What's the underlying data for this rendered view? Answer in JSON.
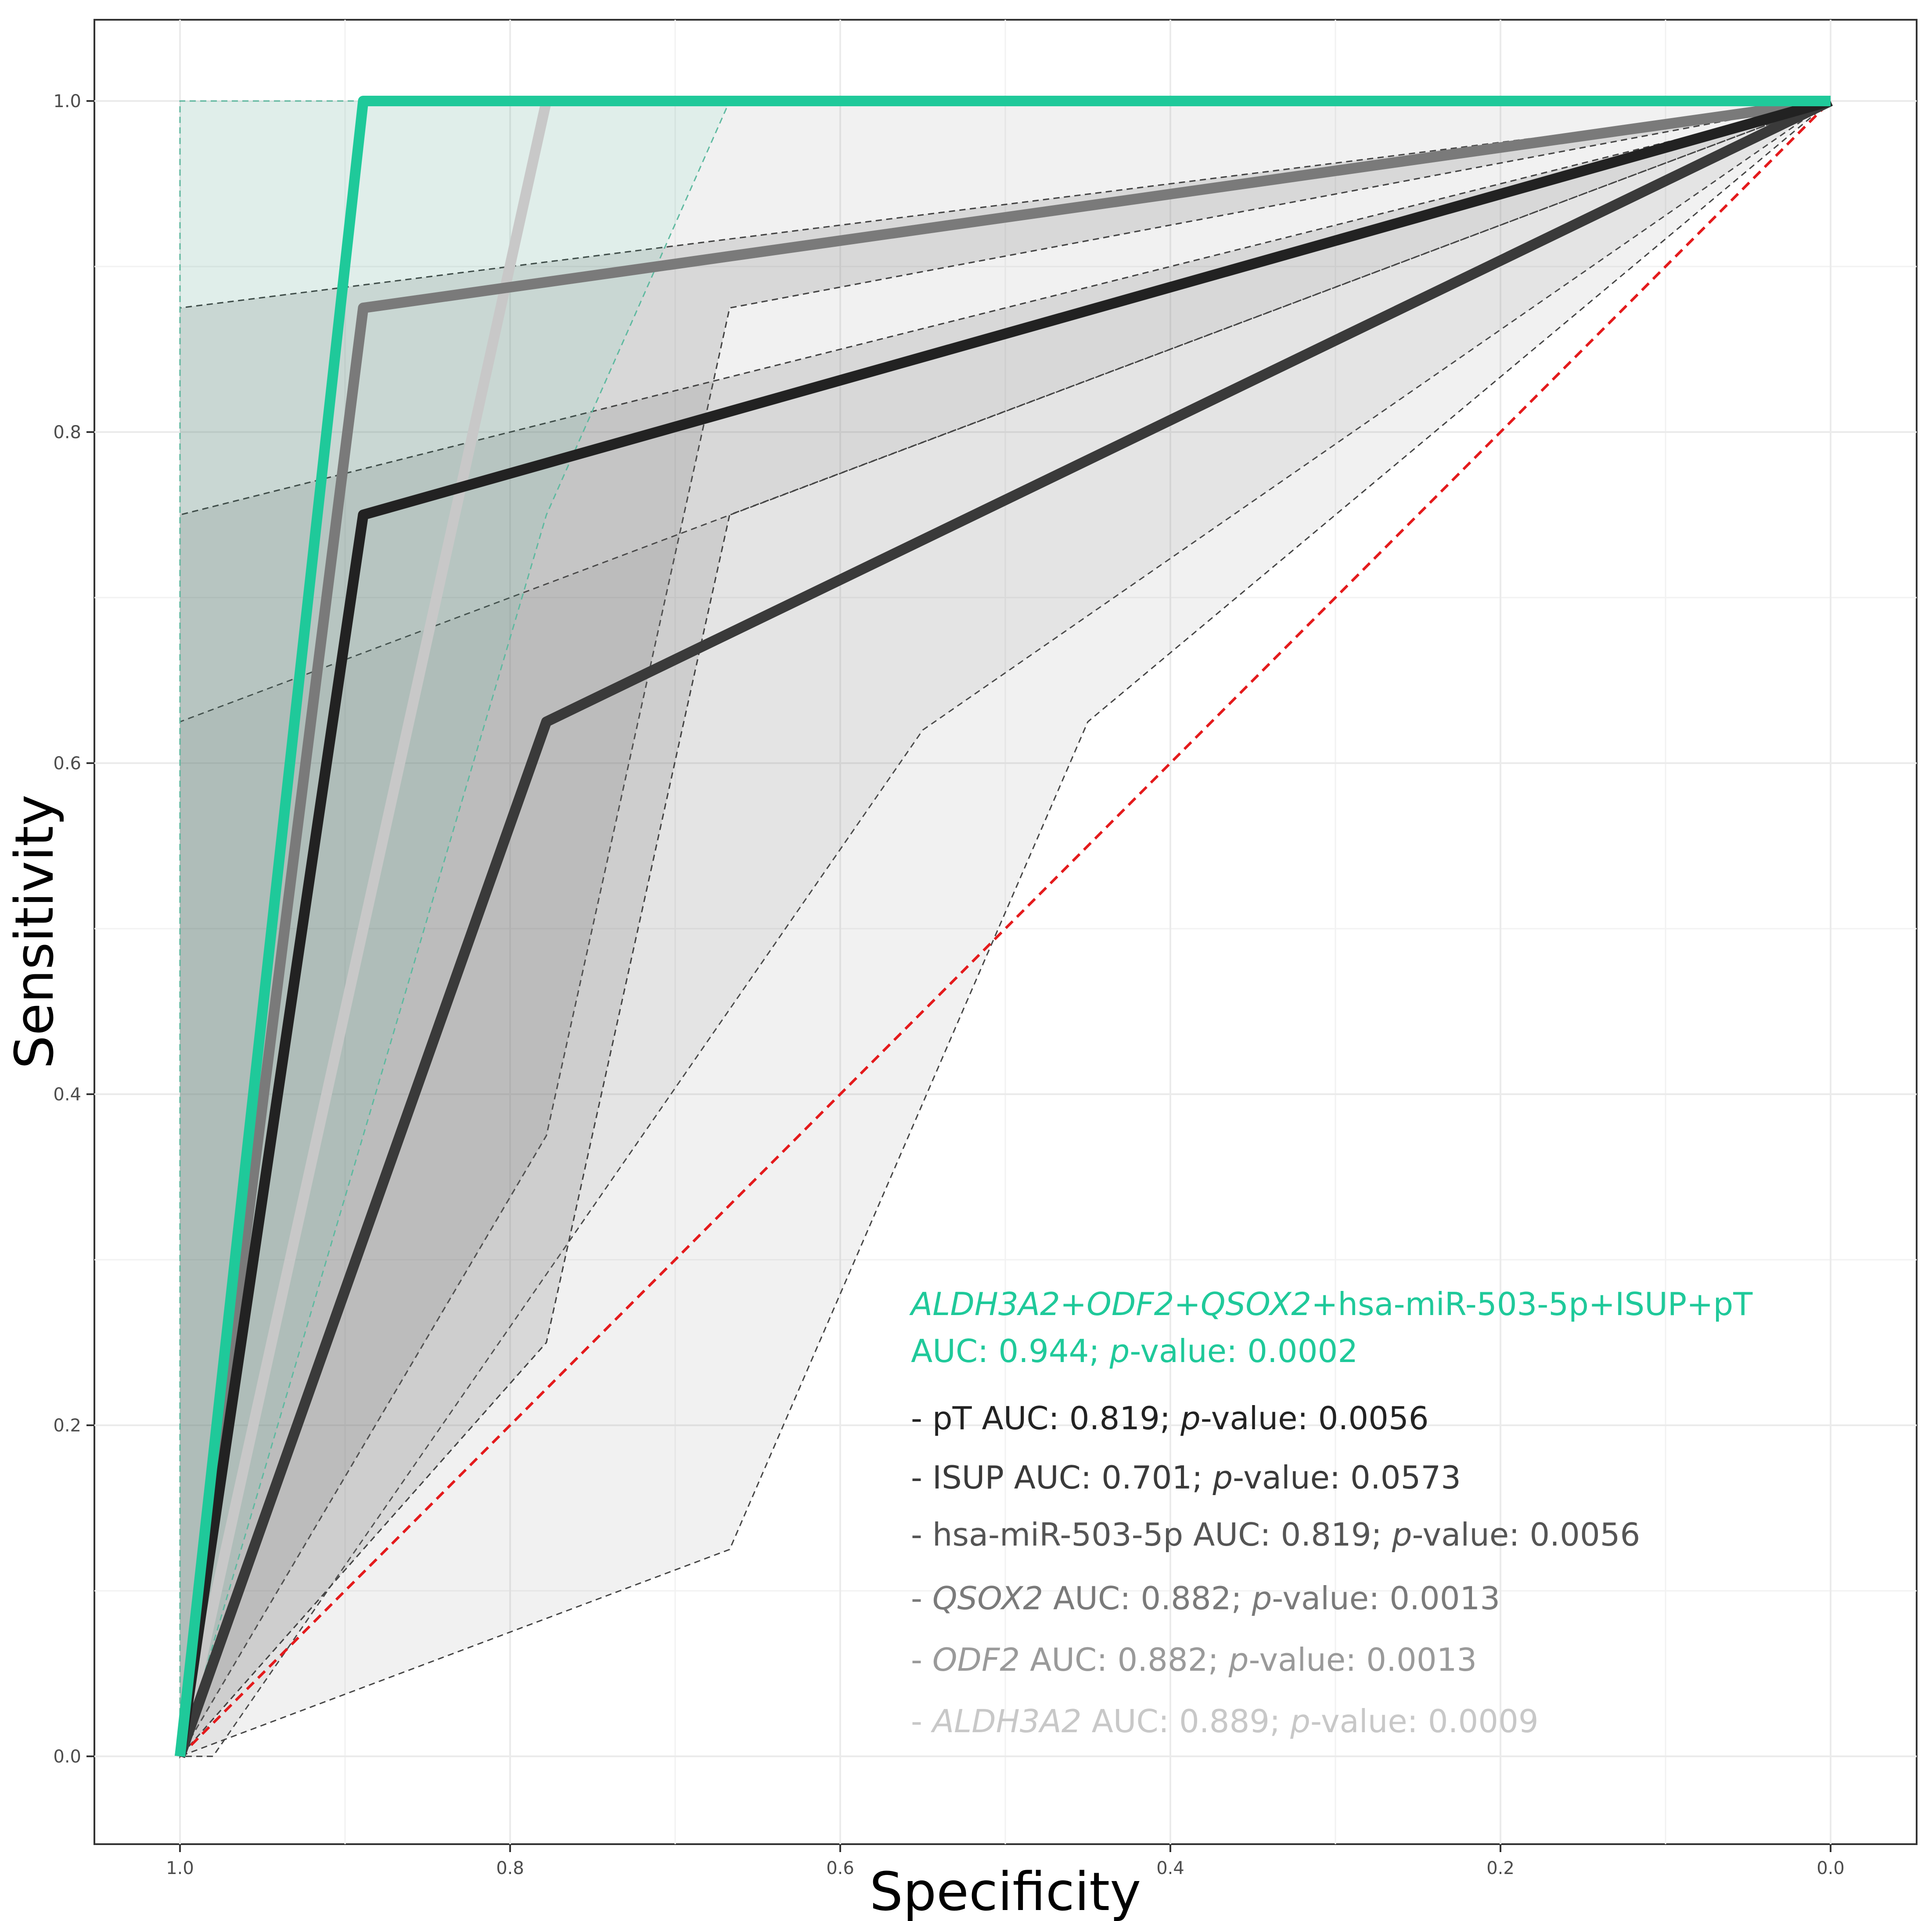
{
  "chart_data": {
    "type": "line",
    "title": "",
    "xlabel": "Specificity",
    "ylabel": "Sensitivity",
    "xlim": [
      1.05,
      -0.05
    ],
    "ylim": [
      -0.05,
      1.05
    ],
    "x_reversed": true,
    "x_ticks": [
      1.0,
      0.8,
      0.6,
      0.4,
      0.2,
      0.0
    ],
    "x_tick_labels": [
      "1.0",
      "0.8",
      "0.6",
      "0.4",
      "0.2",
      "0.0"
    ],
    "y_ticks": [
      0.0,
      0.2,
      0.4,
      0.6,
      0.8,
      1.0
    ],
    "y_tick_labels": [
      "0.0",
      "0.2",
      "0.4",
      "0.6",
      "0.8",
      "1.0"
    ],
    "grid": true,
    "legend_position": "bottom-right",
    "reference_line": {
      "points": [
        [
          1.0,
          0.0
        ],
        [
          0.0,
          1.0
        ]
      ],
      "color": "#e41a1c",
      "dashed": true
    },
    "series": [
      {
        "color": "#c8c8c8",
        "points": [
          [
            1.0,
            0.0
          ],
          [
            0.778,
            1.0
          ],
          [
            0.0,
            1.0
          ]
        ],
        "ci_band": [
          [
            1.0,
            0.0
          ],
          [
            1.0,
            1.0
          ],
          [
            0.55,
            1.0
          ],
          [
            0.0,
            1.0
          ],
          [
            0.55,
            0.62
          ],
          [
            0.98,
            0.0
          ]
        ],
        "legend_parts": [
          {
            "text": "- ",
            "italic": false
          },
          {
            "text": "ALDH3A2",
            "italic": true
          },
          {
            "text": " AUC: 0.889; ",
            "italic": false
          },
          {
            "text": "p",
            "italic": true
          },
          {
            "text": "-value: 0.0009",
            "italic": false
          }
        ]
      },
      {
        "color": "#9a9a9a",
        "points": [
          [
            1.0,
            0.0
          ],
          [
            0.889,
            0.875
          ],
          [
            0.0,
            1.0
          ]
        ],
        "ci_band": [
          [
            1.0,
            0.0
          ],
          [
            1.0,
            0.875
          ],
          [
            0.0,
            1.0
          ],
          [
            0.667,
            0.875
          ],
          [
            0.778,
            0.375
          ]
        ],
        "legend_parts": [
          {
            "text": "- ",
            "italic": false
          },
          {
            "text": "ODF2",
            "italic": true
          },
          {
            "text": " AUC: 0.882; ",
            "italic": false
          },
          {
            "text": "p",
            "italic": true
          },
          {
            "text": "-value: 0.0013",
            "italic": false
          }
        ]
      },
      {
        "color": "#7a7a7a",
        "points": [
          [
            1.0,
            0.0
          ],
          [
            0.889,
            0.875
          ],
          [
            0.0,
            1.0
          ]
        ],
        "ci_band": [
          [
            1.0,
            0.0
          ],
          [
            1.0,
            0.875
          ],
          [
            0.0,
            1.0
          ],
          [
            0.667,
            0.875
          ],
          [
            0.778,
            0.375
          ]
        ],
        "legend_parts": [
          {
            "text": "- ",
            "italic": false
          },
          {
            "text": "QSOX2",
            "italic": true
          },
          {
            "text": " AUC: 0.882; ",
            "italic": false
          },
          {
            "text": "p",
            "italic": true
          },
          {
            "text": "-value: 0.0013",
            "italic": false
          }
        ]
      },
      {
        "color": "#555555",
        "points": [
          [
            1.0,
            0.0
          ],
          [
            0.889,
            0.75
          ],
          [
            0.0,
            1.0
          ]
        ],
        "ci_band": [
          [
            1.0,
            0.0
          ],
          [
            1.0,
            0.75
          ],
          [
            0.0,
            1.0
          ],
          [
            0.667,
            0.75
          ],
          [
            0.778,
            0.25
          ]
        ],
        "legend_parts": [
          {
            "text": "- hsa-miR-503-5p AUC: 0.819; ",
            "italic": false
          },
          {
            "text": "p",
            "italic": true
          },
          {
            "text": "-value: 0.0056",
            "italic": false
          }
        ]
      },
      {
        "color": "#3a3a3a",
        "points": [
          [
            1.0,
            0.0
          ],
          [
            0.778,
            0.625
          ],
          [
            0.0,
            1.0
          ]
        ],
        "ci_band": [
          [
            1.0,
            0.0
          ],
          [
            1.0,
            0.625
          ],
          [
            0.0,
            1.0
          ],
          [
            0.45,
            0.625
          ],
          [
            0.667,
            0.125
          ]
        ],
        "legend_parts": [
          {
            "text": "- ISUP AUC: 0.701; ",
            "italic": false
          },
          {
            "text": "p",
            "italic": true
          },
          {
            "text": "-value: 0.0573",
            "italic": false
          }
        ]
      },
      {
        "color": "#222222",
        "points": [
          [
            1.0,
            0.0
          ],
          [
            0.889,
            0.75
          ],
          [
            0.0,
            1.0
          ]
        ],
        "ci_band": [
          [
            1.0,
            0.0
          ],
          [
            1.0,
            0.75
          ],
          [
            0.0,
            1.0
          ],
          [
            0.667,
            0.75
          ],
          [
            0.778,
            0.25
          ]
        ],
        "legend_parts": [
          {
            "text": "- pT AUC: 0.819; ",
            "italic": false
          },
          {
            "text": "p",
            "italic": true
          },
          {
            "text": "-value: 0.0056",
            "italic": false
          }
        ]
      },
      {
        "color": "#1fc99a",
        "points": [
          [
            1.0,
            0.0
          ],
          [
            0.889,
            1.0
          ],
          [
            0.0,
            1.0
          ]
        ],
        "ci_band": [
          [
            1.0,
            0.0
          ],
          [
            1.0,
            1.0
          ],
          [
            0.667,
            1.0
          ],
          [
            0.778,
            0.75
          ]
        ],
        "legend_parts": [
          {
            "text": "ALDH3A2",
            "italic": true
          },
          {
            "text": "+",
            "italic": false
          },
          {
            "text": "ODF2",
            "italic": true
          },
          {
            "text": "+",
            "italic": false
          },
          {
            "text": "QSOX2",
            "italic": true
          },
          {
            "text": "+hsa-miR-503-5p+ISUP+pT",
            "italic": false
          }
        ],
        "legend_parts_line2": [
          {
            "text": "AUC: 0.944; ",
            "italic": false
          },
          {
            "text": "p",
            "italic": true
          },
          {
            "text": "-value: 0.0002",
            "italic": false
          }
        ]
      }
    ]
  }
}
